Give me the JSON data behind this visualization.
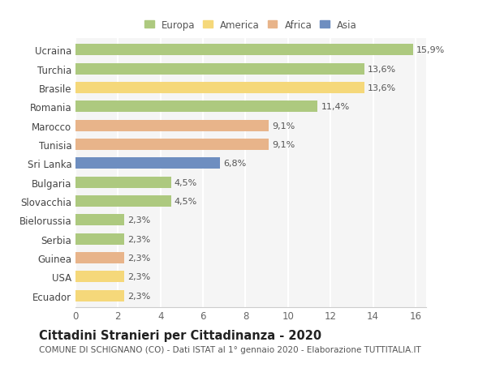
{
  "countries": [
    "Ucraina",
    "Turchia",
    "Brasile",
    "Romania",
    "Marocco",
    "Tunisia",
    "Sri Lanka",
    "Bulgaria",
    "Slovacchia",
    "Bielorussia",
    "Serbia",
    "Guinea",
    "USA",
    "Ecuador"
  ],
  "values": [
    15.9,
    13.6,
    13.6,
    11.4,
    9.1,
    9.1,
    6.8,
    4.5,
    4.5,
    2.3,
    2.3,
    2.3,
    2.3,
    2.3
  ],
  "labels": [
    "15,9%",
    "13,6%",
    "13,6%",
    "11,4%",
    "9,1%",
    "9,1%",
    "6,8%",
    "4,5%",
    "4,5%",
    "2,3%",
    "2,3%",
    "2,3%",
    "2,3%",
    "2,3%"
  ],
  "continents": [
    "Europa",
    "Europa",
    "America",
    "Europa",
    "Africa",
    "Africa",
    "Asia",
    "Europa",
    "Europa",
    "Europa",
    "Europa",
    "Africa",
    "America",
    "America"
  ],
  "colors": {
    "Europa": "#adc97f",
    "America": "#f5d87a",
    "Africa": "#e8b48a",
    "Asia": "#6e8ec0"
  },
  "xlim": [
    0,
    16.5
  ],
  "xticks": [
    0,
    2,
    4,
    6,
    8,
    10,
    12,
    14,
    16
  ],
  "title": "Cittadini Stranieri per Cittadinanza - 2020",
  "subtitle": "COMUNE DI SCHIGNANO (CO) - Dati ISTAT al 1° gennaio 2020 - Elaborazione TUTTITALIA.IT",
  "background_color": "#ffffff",
  "plot_bg_color": "#f5f5f5",
  "grid_color": "#ffffff",
  "bar_height": 0.6,
  "label_fontsize": 8,
  "title_fontsize": 10.5,
  "subtitle_fontsize": 7.5,
  "tick_fontsize": 8.5,
  "legend_fontsize": 8.5
}
